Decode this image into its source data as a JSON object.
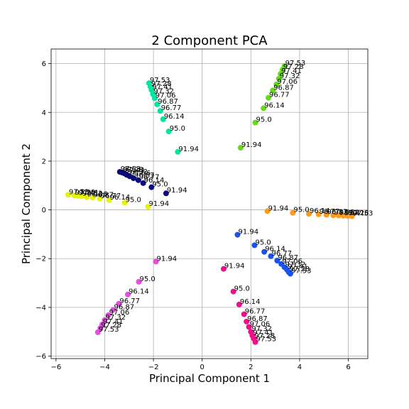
{
  "chart_data": {
    "type": "scatter",
    "title": "2 Component PCA",
    "xlabel": "Principal Component 1",
    "ylabel": "Principal Component 2",
    "xlim": [
      -6.2,
      6.8
    ],
    "ylim": [
      -6.1,
      6.6
    ],
    "xticks": [
      -6,
      -4,
      -2,
      0,
      2,
      4,
      6
    ],
    "yticks": [
      -6,
      -4,
      -2,
      0,
      2,
      4,
      6
    ],
    "grid": true,
    "series": [
      {
        "color": "#00e5a0",
        "points": [
          {
            "x": -1.0,
            "y": 2.38,
            "label": "91.94"
          },
          {
            "x": -1.37,
            "y": 3.22,
            "label": "95.0"
          },
          {
            "x": -1.6,
            "y": 3.72,
            "label": "96.14"
          },
          {
            "x": -1.72,
            "y": 4.06,
            "label": "96.77"
          },
          {
            "x": -1.85,
            "y": 4.33,
            "label": "96.87"
          },
          {
            "x": -1.95,
            "y": 4.58,
            "label": "97.06"
          },
          {
            "x": -2.02,
            "y": 4.75,
            "label": "97.32"
          },
          {
            "x": -2.08,
            "y": 4.92,
            "label": "97.41"
          },
          {
            "x": -2.12,
            "y": 5.05,
            "label": "97.28"
          },
          {
            "x": -2.18,
            "y": 5.2,
            "label": "97.53"
          }
        ]
      },
      {
        "color": "#66d91a",
        "points": [
          {
            "x": 1.58,
            "y": 2.55,
            "label": "91.94"
          },
          {
            "x": 2.18,
            "y": 3.58,
            "label": "95.0"
          },
          {
            "x": 2.52,
            "y": 4.17,
            "label": "96.14"
          },
          {
            "x": 2.72,
            "y": 4.6,
            "label": "96.77"
          },
          {
            "x": 2.9,
            "y": 4.9,
            "label": "96.87"
          },
          {
            "x": 3.05,
            "y": 5.15,
            "label": "97.06"
          },
          {
            "x": 3.15,
            "y": 5.38,
            "label": "97.32"
          },
          {
            "x": 3.22,
            "y": 5.58,
            "label": "97.41"
          },
          {
            "x": 3.3,
            "y": 5.75,
            "label": "97.28"
          },
          {
            "x": 3.38,
            "y": 5.9,
            "label": "97.53"
          }
        ]
      },
      {
        "color": "#0a0a80",
        "points": [
          {
            "x": -1.48,
            "y": 0.68,
            "label": "91.94"
          },
          {
            "x": -2.08,
            "y": 0.93,
            "label": "95.0"
          },
          {
            "x": -2.42,
            "y": 1.1,
            "label": "96.14"
          },
          {
            "x": -2.62,
            "y": 1.22,
            "label": "96.77"
          },
          {
            "x": -2.82,
            "y": 1.3,
            "label": "96.87"
          },
          {
            "x": -2.98,
            "y": 1.38,
            "label": "97.06"
          },
          {
            "x": -3.1,
            "y": 1.44,
            "label": "97.32"
          },
          {
            "x": -3.2,
            "y": 1.5,
            "label": "97.41"
          },
          {
            "x": -3.28,
            "y": 1.53,
            "label": "97.28"
          },
          {
            "x": -3.38,
            "y": 1.56,
            "label": "97.53"
          }
        ]
      },
      {
        "color": "#e6f500",
        "points": [
          {
            "x": -2.22,
            "y": 0.13,
            "label": "91.94"
          },
          {
            "x": -3.18,
            "y": 0.3,
            "label": "95.0"
          },
          {
            "x": -3.82,
            "y": 0.4,
            "label": "96.14"
          },
          {
            "x": -4.2,
            "y": 0.46,
            "label": "96.77"
          },
          {
            "x": -4.5,
            "y": 0.5,
            "label": "96.87"
          },
          {
            "x": -4.75,
            "y": 0.53,
            "label": "97.06"
          },
          {
            "x": -4.95,
            "y": 0.56,
            "label": "97.32"
          },
          {
            "x": -5.1,
            "y": 0.58,
            "label": "97.41"
          },
          {
            "x": -5.25,
            "y": 0.6,
            "label": "97.28"
          },
          {
            "x": -5.5,
            "y": 0.62,
            "label": "97.53"
          }
        ]
      },
      {
        "color": "#ff9a1a",
        "points": [
          {
            "x": 2.68,
            "y": -0.05,
            "label": "91.94"
          },
          {
            "x": 3.72,
            "y": -0.12,
            "label": "95.0"
          },
          {
            "x": 4.38,
            "y": -0.16,
            "label": "96.14"
          },
          {
            "x": 4.78,
            "y": -0.18,
            "label": "96.77"
          },
          {
            "x": 5.1,
            "y": -0.2,
            "label": "96.87"
          },
          {
            "x": 5.38,
            "y": -0.22,
            "label": "97.06"
          },
          {
            "x": 5.6,
            "y": -0.23,
            "label": "97.32"
          },
          {
            "x": 5.8,
            "y": -0.24,
            "label": "97.41"
          },
          {
            "x": 5.98,
            "y": -0.25,
            "label": "97.28"
          },
          {
            "x": 6.15,
            "y": -0.26,
            "label": "97.53"
          }
        ]
      },
      {
        "color": "#1a52f0",
        "points": [
          {
            "x": 1.45,
            "y": -1.02,
            "label": "91.94"
          },
          {
            "x": 2.15,
            "y": -1.45,
            "label": "95.0"
          },
          {
            "x": 2.55,
            "y": -1.72,
            "label": "96.14"
          },
          {
            "x": 2.82,
            "y": -1.9,
            "label": "96.77"
          },
          {
            "x": 3.08,
            "y": -2.08,
            "label": "96.87"
          },
          {
            "x": 3.25,
            "y": -2.22,
            "label": "97.06"
          },
          {
            "x": 3.38,
            "y": -2.35,
            "label": "97.32"
          },
          {
            "x": 3.48,
            "y": -2.45,
            "label": "97.41"
          },
          {
            "x": 3.55,
            "y": -2.55,
            "label": "97.28"
          },
          {
            "x": 3.62,
            "y": -2.62,
            "label": "97.53"
          }
        ]
      },
      {
        "color": "#e34fe0",
        "points": [
          {
            "x": -1.9,
            "y": -2.12,
            "label": "91.94"
          },
          {
            "x": -2.6,
            "y": -2.95,
            "label": "95.0"
          },
          {
            "x": -3.05,
            "y": -3.47,
            "label": "96.14"
          },
          {
            "x": -3.42,
            "y": -3.85,
            "label": "96.77"
          },
          {
            "x": -3.65,
            "y": -4.1,
            "label": "96.87"
          },
          {
            "x": -3.85,
            "y": -4.32,
            "label": "97.06"
          },
          {
            "x": -4.0,
            "y": -4.52,
            "label": "97.32"
          },
          {
            "x": -4.1,
            "y": -4.7,
            "label": "97.41"
          },
          {
            "x": -4.18,
            "y": -4.85,
            "label": "97.28"
          },
          {
            "x": -4.28,
            "y": -5.02,
            "label": "97.53"
          }
        ]
      },
      {
        "color": "#f0108a",
        "points": [
          {
            "x": 0.88,
            "y": -2.42,
            "label": "91.94"
          },
          {
            "x": 1.28,
            "y": -3.35,
            "label": "95.0"
          },
          {
            "x": 1.52,
            "y": -3.88,
            "label": "96.14"
          },
          {
            "x": 1.72,
            "y": -4.28,
            "label": "96.77"
          },
          {
            "x": 1.82,
            "y": -4.58,
            "label": "96.87"
          },
          {
            "x": 1.92,
            "y": -4.8,
            "label": "97.06"
          },
          {
            "x": 2.0,
            "y": -5.0,
            "label": "97.32"
          },
          {
            "x": 2.06,
            "y": -5.15,
            "label": "97.41"
          },
          {
            "x": 2.12,
            "y": -5.28,
            "label": "97.28"
          },
          {
            "x": 2.18,
            "y": -5.42,
            "label": "97.53"
          }
        ]
      }
    ]
  }
}
